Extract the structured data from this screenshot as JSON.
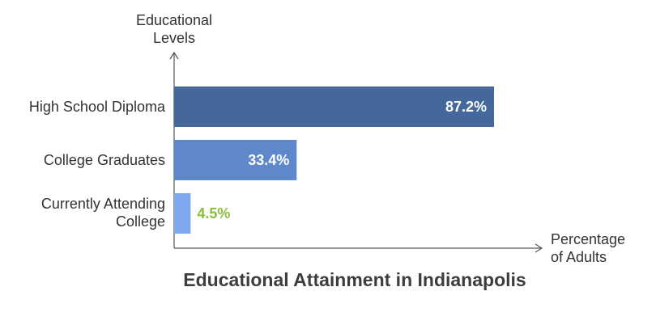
{
  "chart_data": {
    "type": "bar",
    "orientation": "horizontal",
    "title": "Educational Attainment in Indianapolis",
    "ylabel": "Educational Levels",
    "xlabel": "Percentage of Adults",
    "xlim": [
      0,
      100
    ],
    "grid": false,
    "categories": [
      "High School Diploma",
      "College Graduates",
      "Currently Attending College"
    ],
    "values": [
      87.2,
      33.4,
      4.5
    ],
    "data_labels": [
      "87.2%",
      "33.4%",
      "4.5%"
    ],
    "colors": {
      "bars": [
        "#44679c",
        "#5f88cb",
        "#7ea9ee"
      ],
      "label_inside": "#ffffff",
      "label_outside": "#8bbf3a",
      "axis": "#555555"
    }
  }
}
